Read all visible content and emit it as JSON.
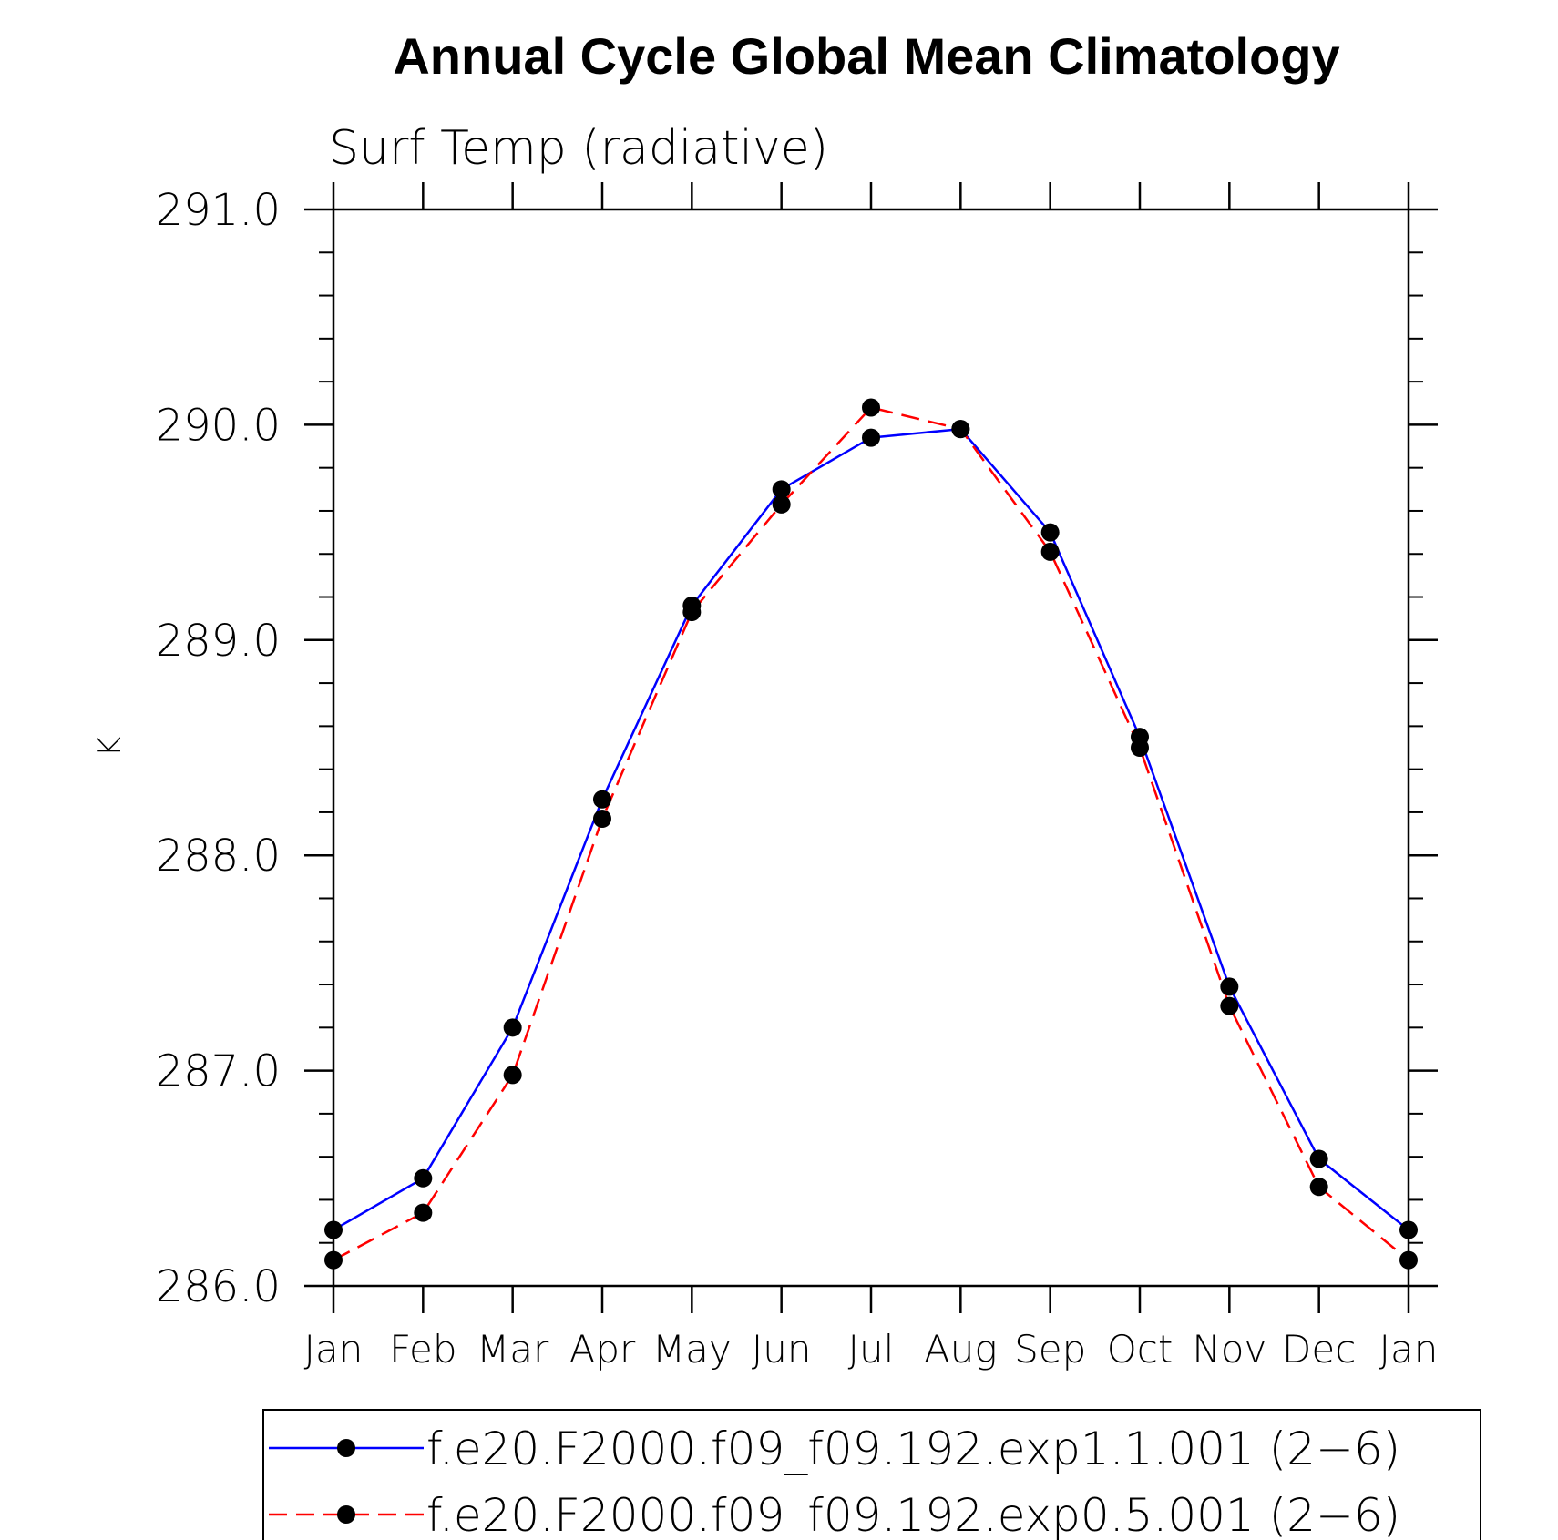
{
  "chart_data": {
    "type": "line",
    "title": "Annual Cycle Global Mean Climatology",
    "subtitle": "Surf Temp (radiative)",
    "xlabel": "",
    "ylabel": "K",
    "categories": [
      "Jan",
      "Feb",
      "Mar",
      "Apr",
      "May",
      "Jun",
      "Jul",
      "Aug",
      "Sep",
      "Oct",
      "Nov",
      "Dec",
      "Jan"
    ],
    "ylim": [
      286.0,
      291.0
    ],
    "yticks": [
      "286.0",
      "287.0",
      "288.0",
      "289.0",
      "290.0",
      "291.0"
    ],
    "grid": false,
    "legend_position": "bottom",
    "series": [
      {
        "name": "f.e20.F2000.f09_f09.192.exp1.1.001 (2−6)",
        "color": "#0000ff",
        "line_style": "solid",
        "marker": "filled-circle",
        "values": [
          286.26,
          286.5,
          287.2,
          288.26,
          289.16,
          289.7,
          289.94,
          289.98,
          289.5,
          288.55,
          287.39,
          286.59,
          286.26
        ]
      },
      {
        "name": "f.e20.F2000.f09_f09.192.exp0.5.001 (2−6)",
        "color": "#ff0000",
        "line_style": "dashed",
        "marker": "filled-circle",
        "values": [
          286.12,
          286.34,
          286.98,
          288.17,
          289.13,
          289.63,
          290.08,
          289.98,
          289.41,
          288.5,
          287.3,
          286.46,
          286.12
        ]
      }
    ]
  }
}
